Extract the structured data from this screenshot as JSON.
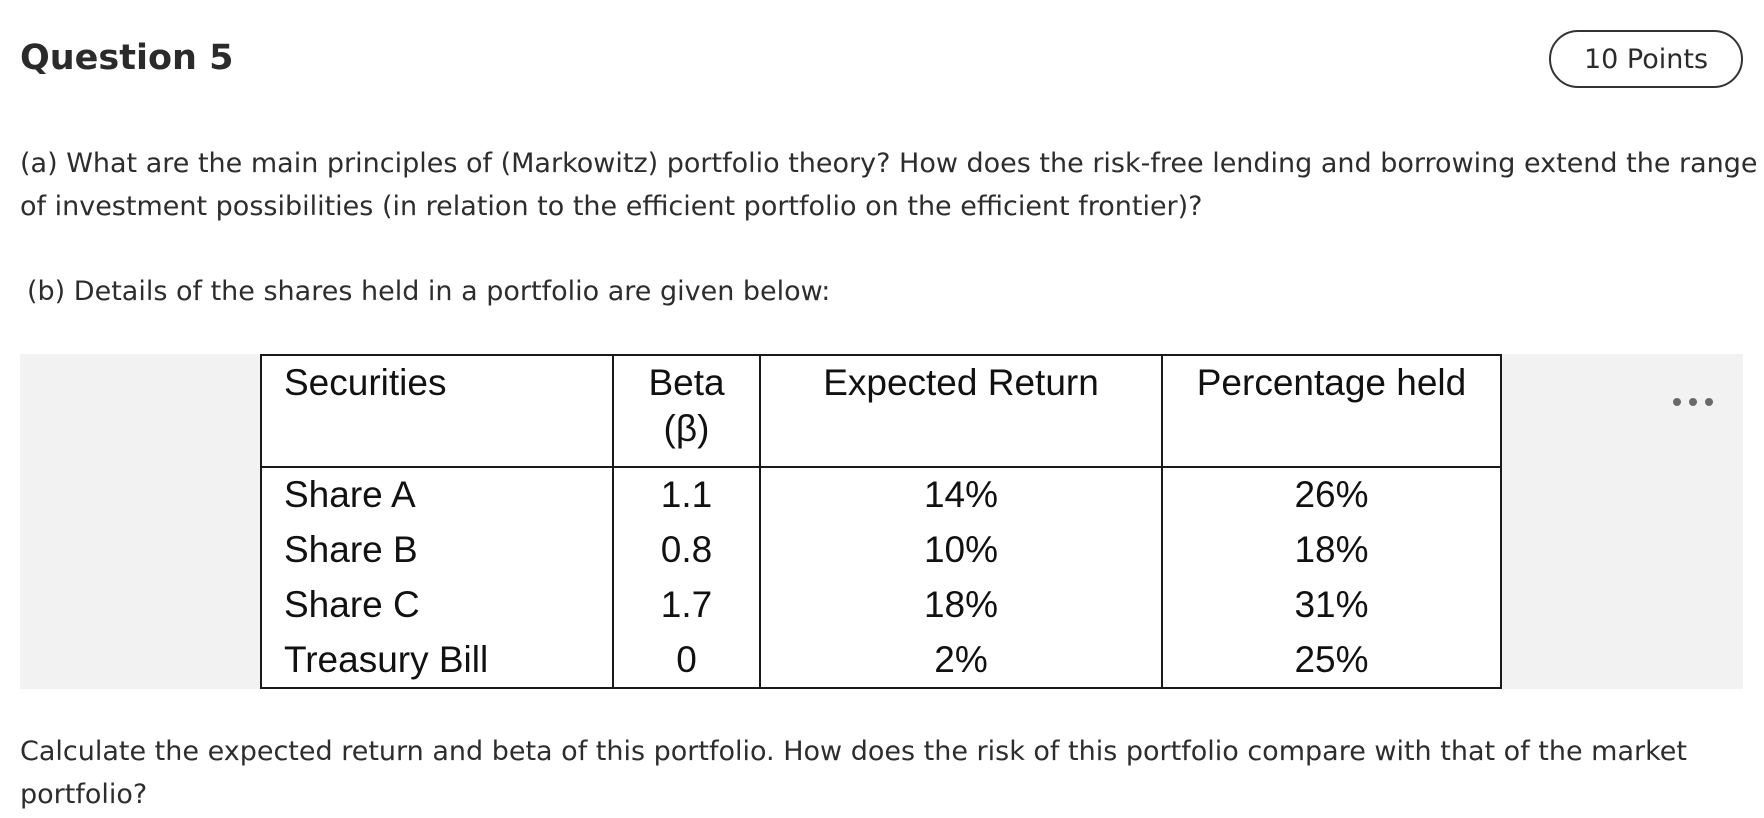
{
  "question": {
    "title": "Question 5",
    "points": "10 Points"
  },
  "body": {
    "part_a_line1": "(a) What are the main principles of (Markowitz) portfolio theory? How does the risk-free lending and borrowing extend the range",
    "part_a_line2": "of investment possibilities (in relation to the efficient portfolio on the efficient frontier)?",
    "part_b": "(b) Details of the shares held in a portfolio are given below:",
    "part_c_line1": "Calculate the expected return and beta of this portfolio. How does the risk of this portfolio compare with that of the market",
    "part_c_line2": "portfolio?"
  },
  "table": {
    "headers": {
      "securities": "Securities",
      "beta_line1": "Beta",
      "beta_line2": "(β)",
      "expected_return": "Expected Return",
      "percentage_held": "Percentage held"
    },
    "rows": [
      {
        "security": "Share A",
        "beta": "1.1",
        "expected_return": "14%",
        "percentage_held": "26%"
      },
      {
        "security": "Share B",
        "beta": "0.8",
        "expected_return": "10%",
        "percentage_held": "18%"
      },
      {
        "security": "Share C",
        "beta": "1.7",
        "expected_return": "18%",
        "percentage_held": "31%"
      },
      {
        "security": "Treasury Bill",
        "beta": "0",
        "expected_return": "2%",
        "percentage_held": "25%"
      }
    ]
  },
  "icons": {
    "more": "more-horizontal-icon"
  }
}
